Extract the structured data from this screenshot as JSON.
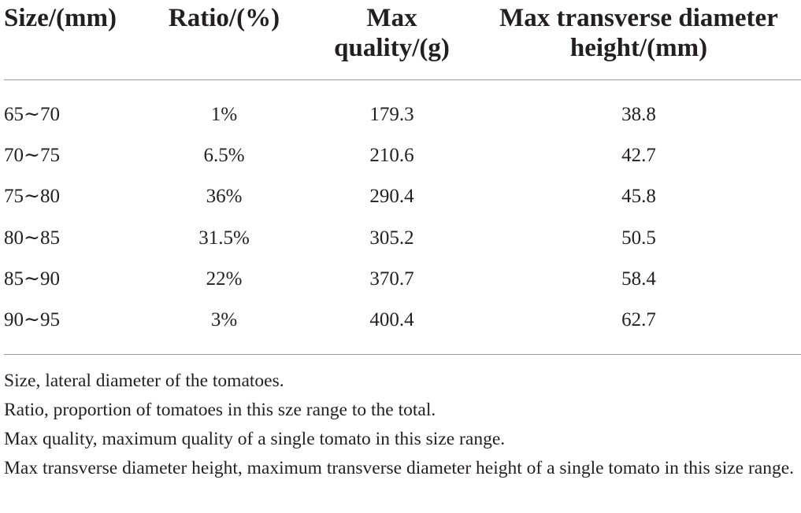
{
  "table": {
    "headers": {
      "size": "Size/(mm)",
      "ratio": "Ratio/(%)",
      "quality_line1": "Max",
      "quality_line2": "quality/(g)",
      "height_line1": "Max transverse diameter",
      "height_line2": "height/(mm)"
    },
    "rows": [
      {
        "size": "65∼70",
        "ratio": "1%",
        "quality": "179.3",
        "height": "38.8"
      },
      {
        "size": "70∼75",
        "ratio": "6.5%",
        "quality": "210.6",
        "height": "42.7"
      },
      {
        "size": "75∼80",
        "ratio": "36%",
        "quality": "290.4",
        "height": "45.8"
      },
      {
        "size": "80∼85",
        "ratio": "31.5%",
        "quality": "305.2",
        "height": "50.5"
      },
      {
        "size": "85∼90",
        "ratio": "22%",
        "quality": "370.7",
        "height": "58.4"
      },
      {
        "size": "90∼95",
        "ratio": "3%",
        "quality": "400.4",
        "height": "62.7"
      }
    ]
  },
  "footnotes": [
    "Size, lateral diameter of the tomatoes.",
    "Ratio, proportion of tomatoes in this sze range to the total.",
    "Max quality, maximum quality of a single tomato in this size range.",
    "Max transverse diameter height, maximum transverse diameter height of a single tomato in this size range."
  ]
}
